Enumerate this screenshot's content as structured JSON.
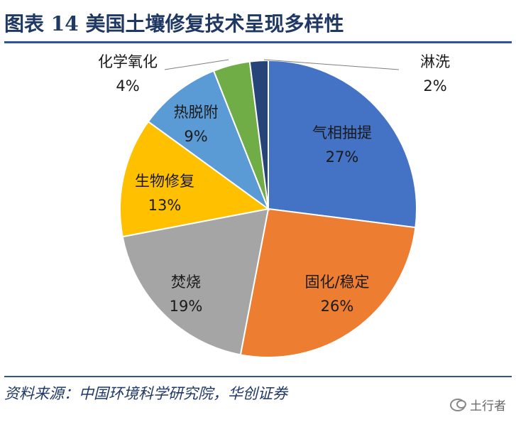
{
  "header": {
    "title": "图表 14  美国土壤修复技术呈现多样性"
  },
  "footer": {
    "source": "资料来源：中国环境科学研究院，华创证券",
    "watermark": "土行者",
    "watermark_icon": "wechat-icon"
  },
  "chart_data": {
    "type": "pie",
    "title": "",
    "slices": [
      {
        "label": "气相抽提",
        "value": 27,
        "value_label": "27%",
        "color": "#4472c4"
      },
      {
        "label": "固化/稳定",
        "value": 26,
        "value_label": "26%",
        "color": "#ed7d31"
      },
      {
        "label": "焚烧",
        "value": 19,
        "value_label": "19%",
        "color": "#a5a5a5"
      },
      {
        "label": "生物修复",
        "value": 13,
        "value_label": "13%",
        "color": "#ffc000"
      },
      {
        "label": "热脱附",
        "value": 9,
        "value_label": "9%",
        "color": "#5b9bd5"
      },
      {
        "label": "化学氧化",
        "value": 4,
        "value_label": "4%",
        "color": "#70ad47"
      },
      {
        "label": "淋洗",
        "value": 2,
        "value_label": "2%",
        "color": "#264478"
      }
    ]
  }
}
